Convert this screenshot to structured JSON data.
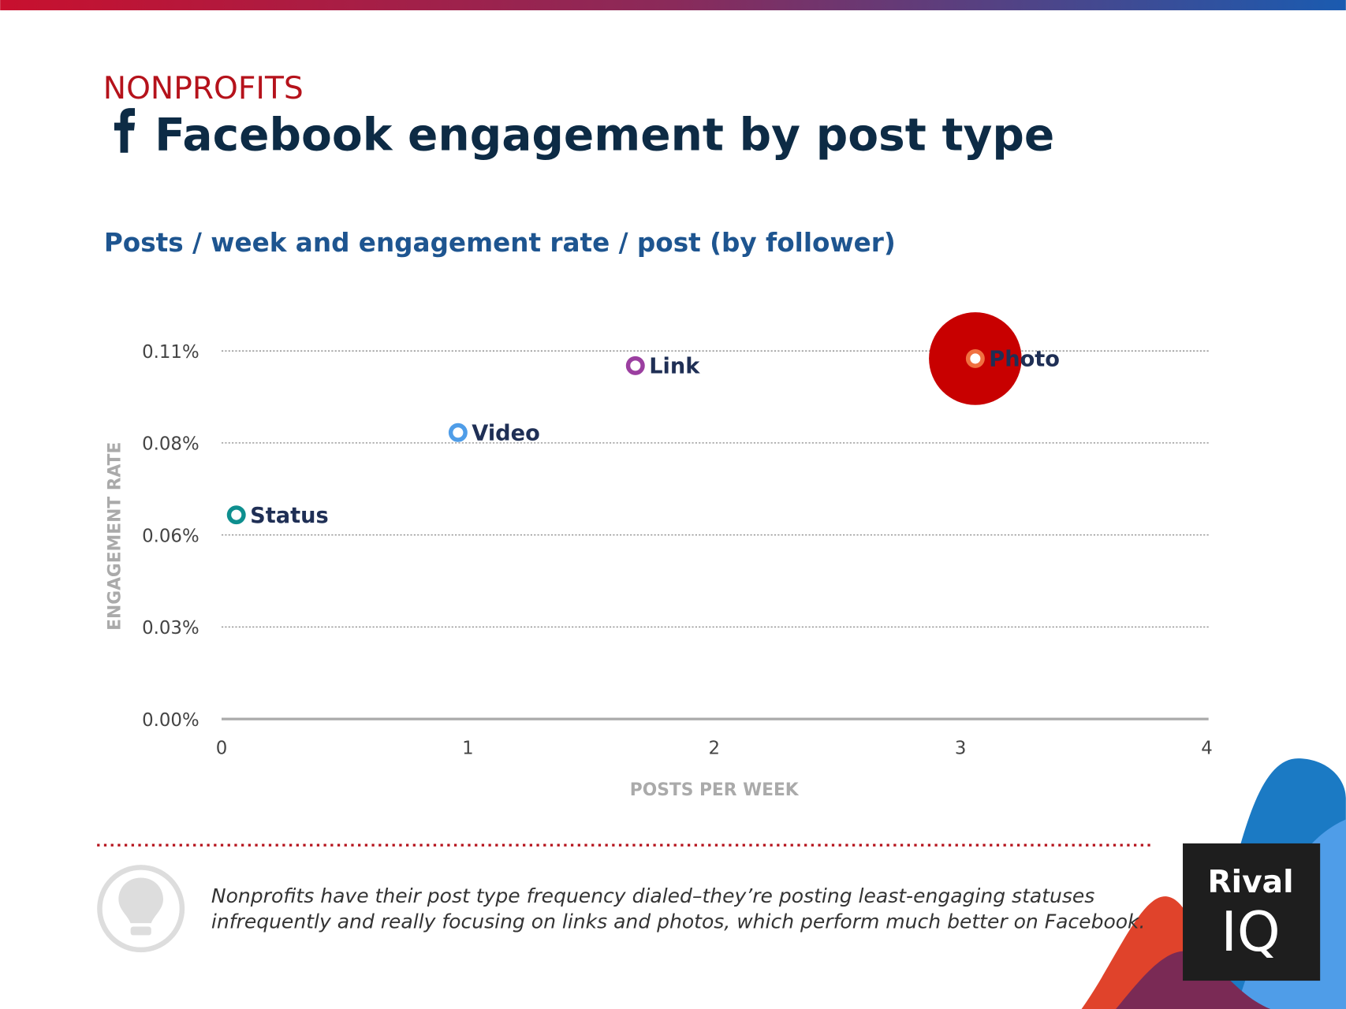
{
  "chart_data": {
    "type": "scatter",
    "kicker": "NONPROFITS",
    "title": "Facebook engagement by post type",
    "subtitle": "Posts / week and engagement rate / post (by follower)",
    "ylabel": "ENGAGEMENT RATE",
    "xlabel": "POSTS PER WEEK",
    "xlim": [
      0,
      4
    ],
    "xticks": [
      0,
      1,
      2,
      3,
      4
    ],
    "ylim": [
      0,
      0.12
    ],
    "yticks": [
      {
        "value": 0,
        "label": "0.00%"
      },
      {
        "value": 0.0275,
        "label": "0.03%"
      },
      {
        "value": 0.055,
        "label": "0.06%"
      },
      {
        "value": 0.0825,
        "label": "0.08%"
      },
      {
        "value": 0.11,
        "label": "0.11%"
      }
    ],
    "grid": true,
    "series": [
      {
        "name": "Status",
        "color": "#0e8f8f",
        "x": [
          0.06
        ],
        "values": [
          0.061
        ]
      },
      {
        "name": "Video",
        "color": "#4f9de8",
        "x": [
          0.96
        ],
        "values": [
          0.0856
        ]
      },
      {
        "name": "Link",
        "color": "#9b3fa0",
        "x": [
          1.68
        ],
        "values": [
          0.1056
        ]
      },
      {
        "name": "Photo",
        "color": "#f07040",
        "x": [
          3.06
        ],
        "values": [
          0.1077
        ]
      }
    ],
    "highlight_index": 3,
    "highlight_color": "#c80000",
    "note_lines": [
      "Nonprofits have their post type frequency dialed–they’re posting least-engaging statuses",
      "infrequently and really focusing on links and photos, which perform much better on Facebook."
    ],
    "brand": [
      "Rival",
      "IQ"
    ]
  }
}
